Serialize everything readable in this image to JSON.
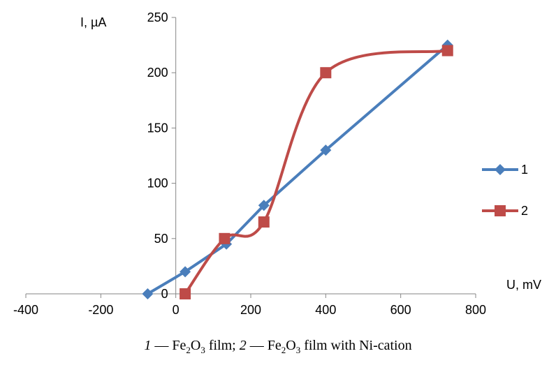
{
  "chart_data": {
    "type": "line",
    "xlabel": "U, mV",
    "ylabel": "I, µA",
    "xlim": [
      -400,
      800
    ],
    "ylim": [
      0,
      250
    ],
    "x_ticks": [
      -400,
      -200,
      0,
      200,
      400,
      600,
      800
    ],
    "y_ticks": [
      0,
      50,
      100,
      150,
      200,
      250
    ],
    "grid": false,
    "legend_placement": "right",
    "series": [
      {
        "name": "1",
        "color": "#4a7ebb",
        "marker": "diamond",
        "smooth": false,
        "x": [
          -75,
          25,
          135,
          235,
          400,
          725
        ],
        "y": [
          0,
          20,
          45,
          80,
          130,
          225
        ]
      },
      {
        "name": "2",
        "color": "#be4b48",
        "marker": "square",
        "smooth": true,
        "x": [
          25,
          130,
          235,
          400,
          725
        ],
        "y": [
          0,
          50,
          65,
          200,
          220
        ]
      }
    ]
  },
  "caption": {
    "num1": "1",
    "sep1": " — Fe",
    "sub1": "2",
    "o1": "O",
    "sub1b": "3",
    "rest1": " film; ",
    "num2": "2",
    "sep2": " — Fe",
    "sub2": "2",
    "o2": "O",
    "sub2b": "3",
    "rest2": " film with Ni-cation"
  }
}
